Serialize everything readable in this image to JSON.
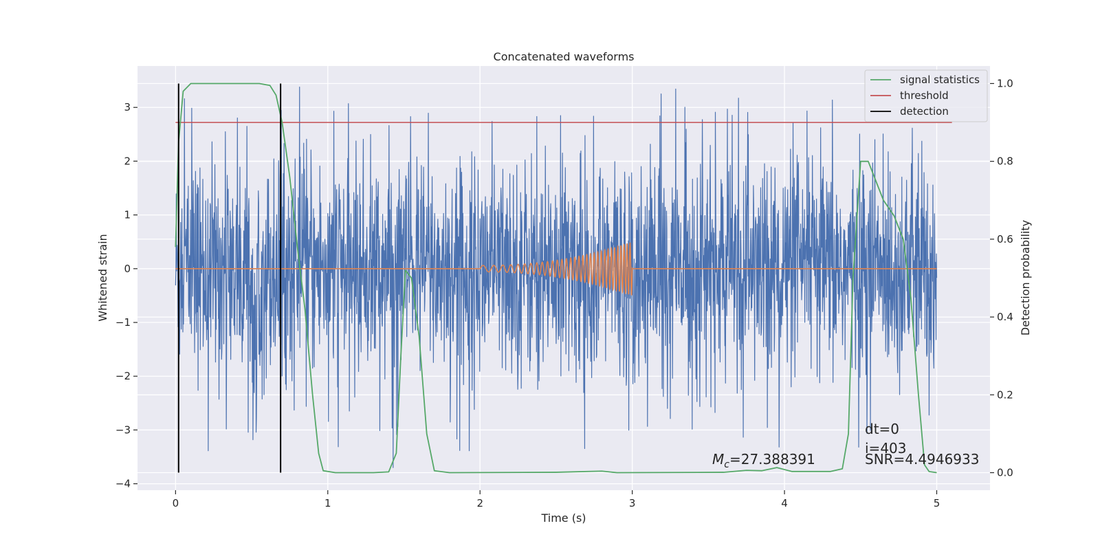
{
  "chart_data": {
    "type": "line",
    "title": "Concatenated waveforms",
    "xlabel": "Time (s)",
    "ylabel": "Whitened strain",
    "ylabel_right": "Detection probability",
    "xlim": [
      -0.25,
      5.35
    ],
    "ylim": [
      -4.12,
      3.77
    ],
    "ylim_right": [
      -0.045,
      1.045
    ],
    "xticks": [
      0,
      1,
      2,
      3,
      4,
      5
    ],
    "xtick_labels": [
      "0",
      "1",
      "2",
      "3",
      "4",
      "5"
    ],
    "yticks": [
      -4,
      -3,
      -2,
      -1,
      0,
      1,
      2,
      3
    ],
    "ytick_labels": [
      "−4",
      "−3",
      "−2",
      "−1",
      "0",
      "1",
      "2",
      "3"
    ],
    "yticks_right": [
      0.0,
      0.2,
      0.4,
      0.6,
      0.8,
      1.0
    ],
    "ytick_labels_right": [
      "0.0",
      "0.2",
      "0.4",
      "0.6",
      "0.8",
      "1.0"
    ],
    "grid": true,
    "legend_placement": "upper right",
    "legend": [
      {
        "name": "signal statistics",
        "color": "#55a868"
      },
      {
        "name": "threshold",
        "color": "#c44e52"
      },
      {
        "name": "detection",
        "color": "#000000"
      }
    ],
    "strain": {
      "color": "#4c72b0",
      "x_range": [
        0,
        5
      ],
      "typical_amplitude": 1.0,
      "peak_amplitude": 3.4
    },
    "injected_waveform": {
      "color": "#dd8452",
      "x_range": [
        0,
        5
      ],
      "chirp_start": 2.0,
      "chirp_end": 3.0,
      "peak_amplitude": 0.5
    },
    "signal_statistics": {
      "axis": "right",
      "color": "#55a868",
      "points": [
        [
          0.0,
          0.58
        ],
        [
          0.02,
          0.85
        ],
        [
          0.05,
          0.98
        ],
        [
          0.1,
          1.0
        ],
        [
          0.3,
          1.0
        ],
        [
          0.55,
          1.0
        ],
        [
          0.62,
          0.995
        ],
        [
          0.66,
          0.97
        ],
        [
          0.7,
          0.9
        ],
        [
          0.75,
          0.76
        ],
        [
          0.8,
          0.58
        ],
        [
          0.85,
          0.42
        ],
        [
          0.9,
          0.2
        ],
        [
          0.94,
          0.05
        ],
        [
          0.97,
          0.005
        ],
        [
          1.05,
          0.0
        ],
        [
          1.3,
          0.0
        ],
        [
          1.4,
          0.002
        ],
        [
          1.45,
          0.05
        ],
        [
          1.48,
          0.3
        ],
        [
          1.51,
          0.52
        ],
        [
          1.55,
          0.5
        ],
        [
          1.6,
          0.35
        ],
        [
          1.65,
          0.1
        ],
        [
          1.7,
          0.005
        ],
        [
          1.8,
          0.0
        ],
        [
          2.5,
          0.001
        ],
        [
          2.8,
          0.004
        ],
        [
          2.9,
          0.0
        ],
        [
          3.6,
          0.001
        ],
        [
          3.75,
          0.006
        ],
        [
          3.85,
          0.005
        ],
        [
          3.95,
          0.013
        ],
        [
          4.05,
          0.003
        ],
        [
          4.3,
          0.003
        ],
        [
          4.38,
          0.01
        ],
        [
          4.42,
          0.1
        ],
        [
          4.45,
          0.5
        ],
        [
          4.5,
          0.8
        ],
        [
          4.55,
          0.8
        ],
        [
          4.6,
          0.75
        ],
        [
          4.65,
          0.7
        ],
        [
          4.72,
          0.66
        ],
        [
          4.78,
          0.6
        ],
        [
          4.83,
          0.45
        ],
        [
          4.88,
          0.2
        ],
        [
          4.92,
          0.02
        ],
        [
          4.95,
          0.003
        ],
        [
          5.0,
          0.0
        ]
      ]
    },
    "threshold": {
      "axis": "right",
      "color": "#c44e52",
      "value": 0.9,
      "x_range": [
        0,
        5.1
      ]
    },
    "detections": {
      "color": "#000000",
      "x": [
        0.02,
        0.69
      ],
      "y_range_right": [
        0.0,
        1.0
      ]
    },
    "annotations": {
      "mc_prefix": "M",
      "mc_subscript": "c",
      "mc_value": "=27.388391",
      "dt": "dt=0",
      "i": "i=403",
      "snr": "SNR=4.4946933"
    }
  }
}
